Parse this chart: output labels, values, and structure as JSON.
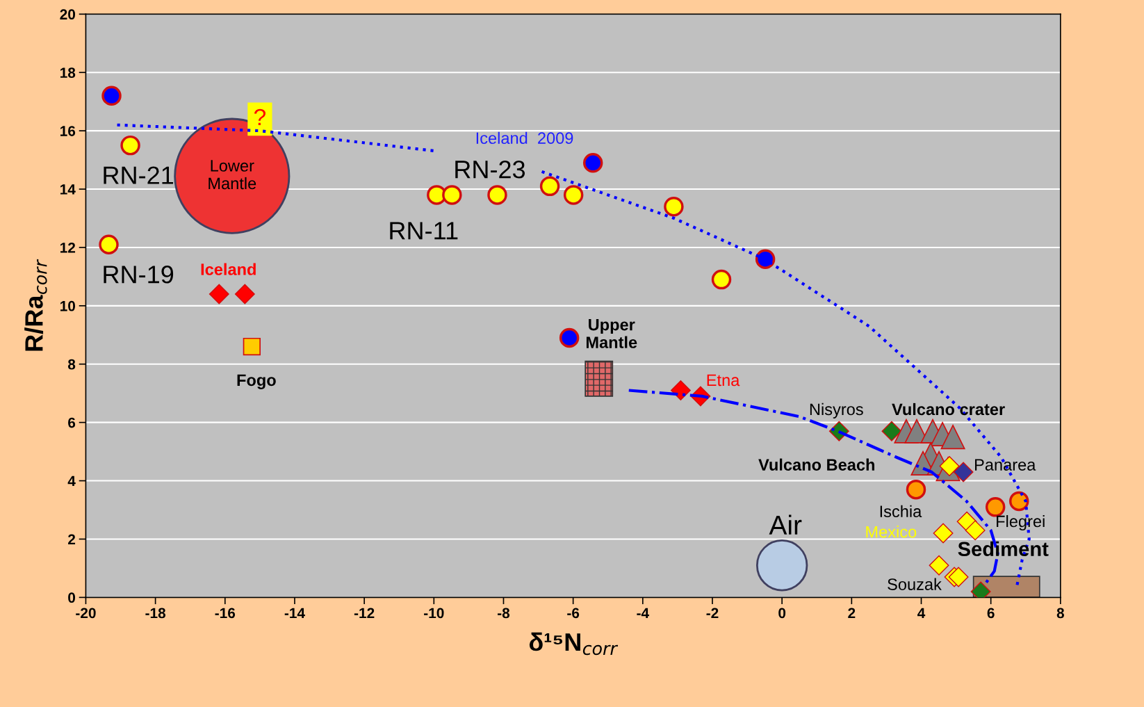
{
  "chart_data": {
    "type": "scatter",
    "xlabel": "δ¹⁵N$_{corr}$",
    "ylabel": "R/Ra$_{corr}$",
    "xlim": [
      -20,
      8
    ],
    "xticks": [
      -20,
      -18,
      -16,
      -14,
      -12,
      -10,
      -8,
      -6,
      -4,
      -2,
      0,
      2,
      4,
      6,
      8
    ],
    "ylim": [
      0,
      20
    ],
    "yticks": [
      0,
      2,
      4,
      6,
      8,
      10,
      12,
      14,
      16,
      18,
      20
    ],
    "grid": "y",
    "legend": false,
    "series": [
      {
        "type": "bubble",
        "marker": "circle",
        "color": "#ee3333",
        "x": [
          -15.8
        ],
        "values": [
          14.45
        ],
        "sizes": [
          1
        ]
      },
      {
        "type": "bubble",
        "marker": "circle",
        "color": "#b8cce4",
        "x": [
          0
        ],
        "values": [
          1.1
        ],
        "sizes": [
          0.19
        ]
      },
      {
        "type": "bar",
        "color": "#b08466",
        "x": [
          6.45
        ],
        "values": [
          0.72
        ]
      },
      {
        "type": "line",
        "color": "#0000ff",
        "line_style": "dotted",
        "marker": "none",
        "x": [
          -19.1,
          -15.0,
          -9.9,
          -8.4,
          -6.9,
          -3.1,
          -0.5,
          2.5,
          5.1,
          6.3,
          7.0,
          7.1,
          6.9,
          6.75
        ],
        "values": [
          16.2,
          16.0,
          15.3,
          null,
          14.6,
          13.0,
          11.6,
          9.3,
          6.5,
          4.8,
          3.3,
          2.0,
          1.3,
          0.4
        ]
      },
      {
        "type": "line",
        "color": "#0000ff",
        "line_style": "dashdot",
        "marker": "none",
        "x": [
          -4.4,
          -2.3,
          0.5,
          1.6,
          3.3,
          4.3,
          5.3,
          6.0,
          6.2,
          6.1,
          5.8
        ],
        "values": [
          7.1,
          6.9,
          6.2,
          5.7,
          4.8,
          4.3,
          3.3,
          2.3,
          1.5,
          0.9,
          0.4
        ]
      },
      {
        "marker": "circle",
        "color": "#0000ff",
        "x": [
          -19.26,
          -5.43,
          -0.48,
          -6.11
        ],
        "values": [
          17.2,
          14.9,
          11.6,
          8.9
        ]
      },
      {
        "marker": "circle",
        "color": "#ffff00",
        "x": [
          -18.72,
          -19.34,
          -9.92,
          -9.48,
          -8.18,
          -6.67,
          -5.99,
          -3.11,
          -1.74
        ],
        "values": [
          15.5,
          12.1,
          13.8,
          13.8,
          13.8,
          14.1,
          13.8,
          13.4,
          10.9
        ]
      },
      {
        "marker": "diamond",
        "color": "#ff0000",
        "x": [
          -16.17,
          -15.43,
          -2.91,
          -2.34
        ],
        "values": [
          10.4,
          10.4,
          7.1,
          6.9
        ]
      },
      {
        "marker": "square",
        "color": "#ffcc00",
        "x": [
          -15.23
        ],
        "values": [
          8.6
        ]
      },
      {
        "marker": "diamond",
        "color": "#1a7a1a",
        "x": [
          1.64,
          3.15,
          5.71
        ],
        "values": [
          5.7,
          5.7,
          0.2
        ]
      },
      {
        "marker": "triangle",
        "color": "#808080",
        "x": [
          3.57,
          3.87,
          4.33,
          4.61,
          4.91,
          4.27,
          4.05,
          4.51,
          4.77
        ],
        "values": [
          5.7,
          5.7,
          5.7,
          5.6,
          5.5,
          4.9,
          4.6,
          4.6,
          4.4
        ]
      },
      {
        "marker": "diamond",
        "color": "#ffff00",
        "x": [
          4.81,
          4.63,
          5.31,
          5.55,
          4.51,
          4.95,
          5.07
        ],
        "values": [
          4.5,
          2.2,
          2.6,
          2.3,
          1.1,
          0.7,
          0.7
        ]
      },
      {
        "marker": "diamond",
        "color": "#333399",
        "x": [
          5.21
        ],
        "values": [
          4.3
        ]
      },
      {
        "marker": "circle",
        "color": "#ff9900",
        "x": [
          3.85,
          6.13,
          6.81
        ],
        "values": [
          3.7,
          3.1,
          3.3
        ]
      }
    ],
    "annotations": [
      "?",
      {
        "text": "Lower\nMantle",
        "x": -15.8,
        "y": 14.45
      },
      "RN-21",
      "RN-19",
      "RN-11",
      "RN-23",
      "Iceland  2009",
      "Iceland",
      "Fogo",
      "Upper\nMantle",
      "Etna",
      "Nisyros",
      "Vulcano Beach",
      "Vulcano crater",
      {
        "text": "Panarea",
        "x": 6.4,
        "y": 4.5
      },
      "Ischia",
      "Mexico",
      "Flegrei",
      "Air",
      "Sediment",
      "Souzak"
    ]
  }
}
